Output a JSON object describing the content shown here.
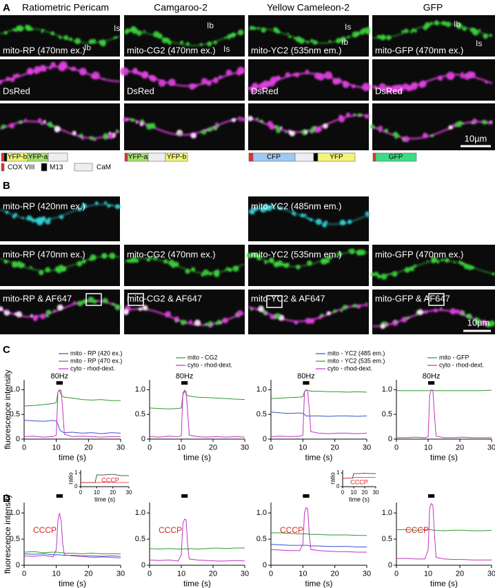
{
  "figure": {
    "panel_a": {
      "label": "A",
      "headers": [
        "Ratiometric Pericam",
        "Camgaroo-2",
        "Yellow Cameleon-2",
        "GFP"
      ],
      "row1": [
        "mito-RP (470nm ex.)",
        "mito-CG2 (470nm ex.)",
        "mito-YC2 (535nm em.)",
        "mito-GFP (470nm ex.)"
      ],
      "row2": [
        "DsRed",
        "DsRed",
        "DsRed",
        "DsRed"
      ],
      "bouton_labels": [
        [
          "Is",
          "Ib"
        ],
        [
          "Ib",
          "Is"
        ],
        [
          "Is",
          "Ib"
        ],
        [
          "Ib",
          "Is"
        ]
      ],
      "constructs": [
        [
          "YFP-b",
          "YFP-a"
        ],
        [
          "YFP-a",
          "YFP-b"
        ],
        [
          "CFP",
          "YFP"
        ],
        [
          "GFP"
        ]
      ],
      "construct_legend": [
        "COX VIII",
        "M13",
        "CaM"
      ],
      "scale_bar": "10µm"
    },
    "panel_b": {
      "label": "B",
      "row1": [
        "mito-RP (420nm ex.)",
        "mito-YC2 (485nm em.)"
      ],
      "row2": [
        "mito-RP (470nm ex.)",
        "mito-CG2 (470nm ex.)",
        "mito-YC2 (535nm em.)",
        "mito-GFP (470nm ex.)"
      ],
      "row3": [
        "mito-RP & AF647",
        "mito-CG2 & AF647",
        "mito-YC2 & AF647",
        "mito-GFP & AF647"
      ],
      "scale_bar": "10µm"
    },
    "panel_c": {
      "label": "C"
    },
    "panel_d": {
      "label": "D"
    }
  },
  "chart_data": [
    {
      "type": "line",
      "xlabel": "time (s)",
      "ylabel": "fluorescence intensity",
      "xlim": [
        0,
        30
      ],
      "ylim": [
        0,
        1.2
      ],
      "xticks": [
        0,
        10,
        20,
        30
      ],
      "yticks": [
        0,
        0.5,
        {
          "value": 1,
          "label": "1.0"
        }
      ],
      "stimulus": {
        "label": "80Hz",
        "start": 10,
        "end": 12
      },
      "x": [
        0,
        3,
        6,
        9,
        10,
        10.5,
        11,
        11.5,
        12,
        12.5,
        15,
        18,
        21,
        24,
        27,
        30
      ],
      "series": [
        {
          "name": "mito - RP (420 ex.)",
          "color": "#3a4fd0",
          "values": [
            0.38,
            0.37,
            0.36,
            0.38,
            0.36,
            0.3,
            0.2,
            0.16,
            0.14,
            0.13,
            0.14,
            0.12,
            0.13,
            0.11,
            0.13,
            0.12
          ]
        },
        {
          "name": "mito - RP (470 ex.)",
          "color": "#2a9a2a",
          "values": [
            0.67,
            0.68,
            0.7,
            0.72,
            0.74,
            0.95,
            0.99,
            0.9,
            0.86,
            0.85,
            0.83,
            0.8,
            0.79,
            0.8,
            0.78,
            0.78
          ]
        },
        {
          "name": "cyto - rhod-dext.",
          "color": "#c030c0",
          "values": [
            0.05,
            0.06,
            0.04,
            0.05,
            0.08,
            0.95,
            1.0,
            0.98,
            0.6,
            0.1,
            0.05,
            0.06,
            0.05,
            0.04,
            0.05,
            0.05
          ]
        }
      ]
    },
    {
      "type": "line",
      "xlabel": "time (s)",
      "xlim": [
        0,
        30
      ],
      "ylim": [
        0,
        1.2
      ],
      "xticks": [
        0,
        10,
        20,
        30
      ],
      "yticks": [
        0,
        0.5,
        {
          "value": 1,
          "label": "1.0"
        }
      ],
      "stimulus": {
        "label": "80Hz",
        "start": 10,
        "end": 12
      },
      "x": [
        0,
        3,
        6,
        9,
        10,
        10.5,
        11,
        11.5,
        12,
        12.5,
        15,
        18,
        21,
        24,
        27,
        30
      ],
      "series": [
        {
          "name": "mito - CG2",
          "color": "#2a9a2a",
          "values": [
            0.63,
            0.62,
            0.61,
            0.62,
            0.63,
            0.9,
            0.97,
            0.92,
            0.88,
            0.87,
            0.85,
            0.84,
            0.83,
            0.82,
            0.81,
            0.8
          ]
        },
        {
          "name": "cyto - rhod-dext.",
          "color": "#c030c0",
          "values": [
            0.05,
            0.04,
            0.06,
            0.05,
            0.07,
            0.93,
            0.99,
            0.97,
            0.55,
            0.08,
            0.05,
            0.04,
            0.05,
            0.04,
            0.05,
            0.04
          ]
        }
      ]
    },
    {
      "type": "line",
      "xlabel": "time (s)",
      "xlim": [
        0,
        30
      ],
      "ylim": [
        0,
        1.2
      ],
      "xticks": [
        0,
        10,
        20,
        30
      ],
      "yticks": [
        0,
        0.5,
        {
          "value": 1,
          "label": "1.0"
        }
      ],
      "stimulus": {
        "label": "80Hz",
        "start": 10,
        "end": 12
      },
      "x": [
        0,
        3,
        6,
        9,
        10,
        10.5,
        11,
        11.5,
        12,
        12.5,
        15,
        18,
        21,
        24,
        27,
        30
      ],
      "series": [
        {
          "name": "mito - YC2 (485 em.)",
          "color": "#3a4fd0",
          "values": [
            0.55,
            0.53,
            0.52,
            0.53,
            0.52,
            0.5,
            0.47,
            0.47,
            0.47,
            0.47,
            0.47,
            0.46,
            0.47,
            0.47,
            0.46,
            0.47
          ]
        },
        {
          "name": "mito - YC2 (535 em.)",
          "color": "#2a9a2a",
          "values": [
            0.82,
            0.83,
            0.84,
            0.85,
            0.86,
            0.96,
            0.99,
            0.98,
            0.98,
            0.97,
            0.97,
            0.96,
            0.96,
            0.95,
            0.96,
            0.95
          ]
        },
        {
          "name": "cyto - rhod-dext.",
          "color": "#c030c0",
          "values": [
            0.05,
            0.06,
            0.05,
            0.06,
            0.08,
            0.95,
            1.0,
            0.98,
            0.6,
            0.15,
            0.12,
            0.11,
            0.12,
            0.12,
            0.11,
            0.12
          ]
        }
      ]
    },
    {
      "type": "line",
      "xlabel": "time (s)",
      "xlim": [
        0,
        30
      ],
      "ylim": [
        0,
        1.2
      ],
      "xticks": [
        0,
        10,
        20,
        30
      ],
      "yticks": [
        0,
        0.5,
        {
          "value": 1,
          "label": "1.0"
        }
      ],
      "stimulus": {
        "label": "80Hz",
        "start": 10,
        "end": 12
      },
      "x": [
        0,
        3,
        6,
        9,
        10,
        10.5,
        11,
        11.5,
        12,
        12.5,
        15,
        18,
        21,
        24,
        27,
        30
      ],
      "series": [
        {
          "name": "mito - GFP",
          "color": "#2a9a2a",
          "values": [
            0.98,
            0.98,
            0.98,
            0.98,
            0.98,
            0.98,
            0.99,
            0.99,
            0.98,
            0.98,
            0.98,
            0.98,
            0.98,
            0.98,
            0.98,
            0.99
          ]
        },
        {
          "name": "cyto - rhod-dext.",
          "color": "#c030c0",
          "values": [
            0.03,
            0.03,
            0.04,
            0.03,
            0.05,
            0.9,
            1.0,
            0.98,
            0.5,
            0.06,
            0.03,
            0.03,
            0.04,
            0.03,
            0.03,
            0.03
          ]
        }
      ]
    },
    {
      "type": "line",
      "xlabel": "time (s)",
      "ylabel": "fluorescence intensity",
      "annotation": "CCCP",
      "xlim": [
        0,
        30
      ],
      "ylim": [
        0,
        1.2
      ],
      "xticks": [
        0,
        10,
        20,
        30
      ],
      "yticks": [
        0,
        0.5,
        {
          "value": 1,
          "label": "1.0"
        }
      ],
      "stimulus": {
        "start": 10,
        "end": 12
      },
      "x": [
        0,
        3,
        6,
        9,
        10,
        10.5,
        11,
        11.5,
        12,
        12.5,
        15,
        18,
        21,
        24,
        27,
        30
      ],
      "series": [
        {
          "color": "#2a9a2a",
          "values": [
            0.25,
            0.26,
            0.24,
            0.25,
            0.25,
            0.25,
            0.24,
            0.24,
            0.24,
            0.23,
            0.23,
            0.22,
            0.23,
            0.22,
            0.22,
            0.22
          ]
        },
        {
          "color": "#3a4fd0",
          "values": [
            0.22,
            0.21,
            0.22,
            0.2,
            0.2,
            0.2,
            0.2,
            0.2,
            0.19,
            0.19,
            0.19,
            0.18,
            0.18,
            0.17,
            0.18,
            0.17
          ]
        },
        {
          "color": "#c030c0",
          "values": [
            0.18,
            0.17,
            0.19,
            0.16,
            0.3,
            0.85,
            1.0,
            0.85,
            0.4,
            0.2,
            0.18,
            0.17,
            0.15,
            0.16,
            0.15,
            0.14
          ]
        }
      ]
    },
    {
      "type": "line",
      "xlabel": "time (s)",
      "annotation": "CCCP",
      "xlim": [
        0,
        30
      ],
      "ylim": [
        0,
        1.2
      ],
      "xticks": [
        0,
        10,
        20,
        30
      ],
      "yticks": [
        0,
        0.5,
        {
          "value": 1,
          "label": "1.0"
        }
      ],
      "stimulus": {
        "start": 10,
        "end": 12
      },
      "x": [
        0,
        3,
        6,
        9,
        10,
        10.5,
        11,
        11.5,
        12,
        12.5,
        15,
        18,
        21,
        24,
        27,
        30
      ],
      "series": [
        {
          "color": "#2a9a2a",
          "values": [
            0.32,
            0.31,
            0.32,
            0.31,
            0.31,
            0.31,
            0.32,
            0.31,
            0.31,
            0.32,
            0.31,
            0.32,
            0.33,
            0.32,
            0.33,
            0.33
          ]
        },
        {
          "color": "#c030c0",
          "values": [
            0.1,
            0.09,
            0.1,
            0.08,
            0.2,
            0.8,
            0.88,
            0.87,
            0.4,
            0.12,
            0.1,
            0.09,
            0.08,
            0.08,
            0.09,
            0.08
          ]
        }
      ]
    },
    {
      "type": "line",
      "xlabel": "time (s)",
      "annotation": "CCCP",
      "xlim": [
        0,
        30
      ],
      "ylim": [
        0,
        1.2
      ],
      "xticks": [
        0,
        10,
        20,
        30
      ],
      "yticks": [
        0,
        0.5,
        {
          "value": 1,
          "label": "1.0"
        }
      ],
      "stimulus": {
        "start": 10,
        "end": 12
      },
      "x": [
        0,
        3,
        6,
        9,
        10,
        10.5,
        11,
        11.5,
        12,
        12.5,
        15,
        18,
        21,
        24,
        27,
        30
      ],
      "series": [
        {
          "color": "#2a9a2a",
          "values": [
            0.62,
            0.62,
            0.61,
            0.6,
            0.6,
            0.6,
            0.6,
            0.6,
            0.59,
            0.59,
            0.59,
            0.58,
            0.58,
            0.58,
            0.57,
            0.57
          ]
        },
        {
          "color": "#3a4fd0",
          "values": [
            0.4,
            0.39,
            0.38,
            0.38,
            0.38,
            0.38,
            0.38,
            0.38,
            0.37,
            0.37,
            0.37,
            0.36,
            0.36,
            0.36,
            0.35,
            0.35
          ]
        },
        {
          "color": "#c030c0",
          "values": [
            0.3,
            0.29,
            0.28,
            0.28,
            0.4,
            1.0,
            1.1,
            1.08,
            0.6,
            0.3,
            0.28,
            0.27,
            0.26,
            0.26,
            0.25,
            0.25
          ]
        }
      ]
    },
    {
      "type": "line",
      "xlabel": "time (s)",
      "annotation": "CCCP",
      "xlim": [
        0,
        30
      ],
      "ylim": [
        0,
        1.2
      ],
      "xticks": [
        0,
        10,
        20,
        30
      ],
      "yticks": [
        0,
        0.5,
        {
          "value": 1,
          "label": "1.0"
        }
      ],
      "stimulus": {
        "start": 10,
        "end": 12
      },
      "x": [
        0,
        3,
        6,
        9,
        10,
        10.5,
        11,
        11.5,
        12,
        12.5,
        15,
        18,
        21,
        24,
        27,
        30
      ],
      "series": [
        {
          "color": "#2a9a2a",
          "values": [
            0.68,
            0.68,
            0.67,
            0.68,
            0.68,
            0.68,
            0.68,
            0.67,
            0.67,
            0.67,
            0.66,
            0.67,
            0.67,
            0.66,
            0.66,
            0.67
          ]
        },
        {
          "color": "#c030c0",
          "values": [
            0.13,
            0.13,
            0.12,
            0.12,
            0.3,
            1.1,
            1.18,
            1.15,
            0.6,
            0.15,
            0.12,
            0.11,
            0.11,
            0.1,
            0.1,
            0.1
          ]
        }
      ]
    },
    {
      "type": "line",
      "xlabel": "time (s)",
      "ylabel": "ratio",
      "annotation": "CCCP",
      "xlim": [
        0,
        30
      ],
      "ylim": [
        0,
        1.2
      ],
      "xticks": [
        0,
        10,
        20,
        30
      ],
      "yticks": [
        0,
        1
      ],
      "x": [
        0,
        5,
        9,
        10,
        15,
        20,
        25,
        30
      ],
      "series": [
        {
          "color": "#222222",
          "values": [
            0.3,
            0.3,
            0.3,
            0.85,
            0.85,
            0.9,
            0.8,
            0.8
          ]
        },
        {
          "color": "#e02020",
          "values": [
            0.3,
            0.3,
            0.3,
            0.3,
            0.32,
            0.3,
            0.3,
            0.3
          ]
        }
      ]
    },
    {
      "type": "line",
      "xlabel": "time (s)",
      "ylabel": "ratio",
      "annotation": "CCCP",
      "xlim": [
        0,
        30
      ],
      "ylim": [
        0,
        1.2
      ],
      "xticks": [
        0,
        10,
        20,
        30
      ],
      "yticks": [
        0,
        1
      ],
      "x": [
        0,
        5,
        9,
        10,
        15,
        20,
        25,
        30
      ],
      "series": [
        {
          "color": "#222222",
          "values": [
            0.6,
            0.62,
            0.62,
            0.95,
            0.95,
            0.97,
            0.95,
            0.95
          ]
        },
        {
          "color": "#e02020",
          "values": [
            0.6,
            0.62,
            0.62,
            0.65,
            0.68,
            0.68,
            0.68,
            0.68
          ]
        }
      ]
    }
  ]
}
